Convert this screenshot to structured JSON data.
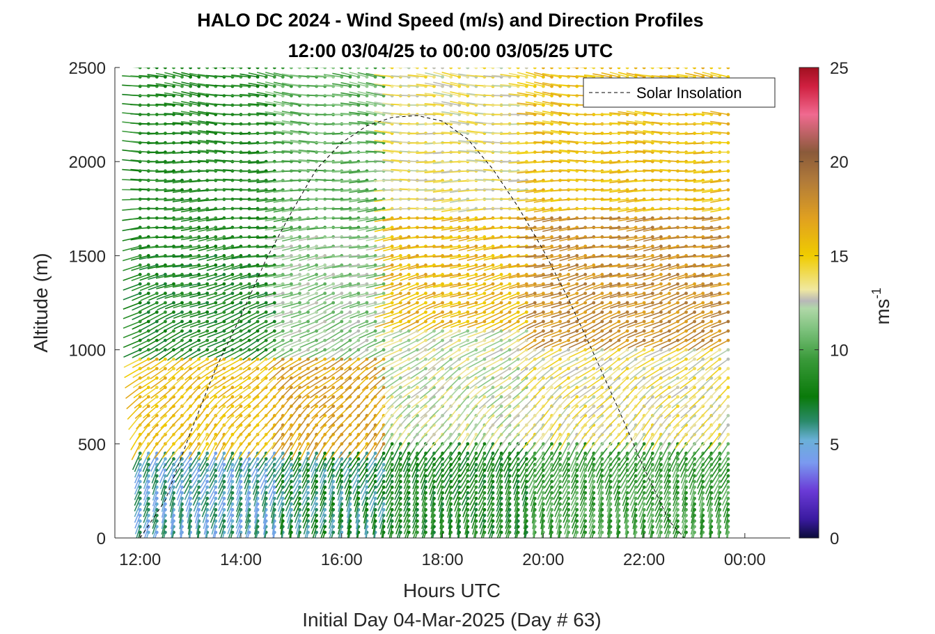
{
  "chart_data": {
    "type": "wind-barb-profile",
    "title": "HALO DC 2024 - Wind Speed (m/s) and Direction Profiles",
    "subtitle": "12:00 03/04/25 to 00:00 03/05/25  UTC",
    "xlabel": "Hours UTC",
    "xlabel2": "Initial Day 04-Mar-2025 (Day # 63)",
    "ylabel": "Altitude (m)",
    "xlim_hours": [
      11.5,
      24.9
    ],
    "ylim": [
      0,
      2500
    ],
    "x_ticks": [
      {
        "value": 12,
        "label": "12:00"
      },
      {
        "value": 14,
        "label": "14:00"
      },
      {
        "value": 16,
        "label": "16:00"
      },
      {
        "value": 18,
        "label": "18:00"
      },
      {
        "value": 20,
        "label": "20:00"
      },
      {
        "value": 22,
        "label": "22:00"
      },
      {
        "value": 24,
        "label": "00:00"
      }
    ],
    "y_ticks": [
      {
        "value": 0,
        "label": "0"
      },
      {
        "value": 500,
        "label": "500"
      },
      {
        "value": 1000,
        "label": "1000"
      },
      {
        "value": 1500,
        "label": "1500"
      },
      {
        "value": 2000,
        "label": "2000"
      },
      {
        "value": 2500,
        "label": "2500"
      }
    ],
    "colorbar": {
      "label": "ms",
      "label_sup": "-1",
      "range": [
        0,
        25
      ],
      "ticks": [
        {
          "value": 0,
          "label": "0"
        },
        {
          "value": 5,
          "label": "5"
        },
        {
          "value": 10,
          "label": "10"
        },
        {
          "value": 15,
          "label": "15"
        },
        {
          "value": 20,
          "label": "20"
        },
        {
          "value": 25,
          "label": "25"
        }
      ],
      "stops": [
        {
          "v": 0,
          "color": "#0b0c3a"
        },
        {
          "v": 1,
          "color": "#3a1aa0"
        },
        {
          "v": 2.5,
          "color": "#6a3ad6"
        },
        {
          "v": 4,
          "color": "#7a9af0"
        },
        {
          "v": 5.2,
          "color": "#6ab0d8"
        },
        {
          "v": 6.2,
          "color": "#2a8a6a"
        },
        {
          "v": 7.5,
          "color": "#0a7a0a"
        },
        {
          "v": 9.5,
          "color": "#3a9a3a"
        },
        {
          "v": 11,
          "color": "#7ac07a"
        },
        {
          "v": 12.2,
          "color": "#b0d8a8"
        },
        {
          "v": 12.6,
          "color": "#b8b8b8"
        },
        {
          "v": 13.2,
          "color": "#f0e8a0"
        },
        {
          "v": 15,
          "color": "#f0cc00"
        },
        {
          "v": 17,
          "color": "#e0a020"
        },
        {
          "v": 19,
          "color": "#b07a3a"
        },
        {
          "v": 20.5,
          "color": "#8a5a3a"
        },
        {
          "v": 22.5,
          "color": "#f06a90"
        },
        {
          "v": 24,
          "color": "#d02040"
        },
        {
          "v": 25,
          "color": "#a01020"
        }
      ]
    },
    "legend": {
      "entries": [
        "Solar Insolation"
      ],
      "placement": "top-right"
    },
    "barb_columns": {
      "start_hour": 12.0,
      "end_hour": 23.8,
      "step_hour": 0.1667,
      "levels_low": {
        "start": 30,
        "end": 450,
        "step": 30
      },
      "levels_high": {
        "start": 450,
        "end": 2500,
        "step": 50
      }
    },
    "speed_regimes": [
      {
        "from_hour": 12.0,
        "to_hour": 14.7,
        "layers": [
          {
            "z0": 0,
            "z1": 450,
            "speed": 5.5
          },
          {
            "z0": 450,
            "z1": 950,
            "speed": 15.5
          },
          {
            "z0": 950,
            "z1": 1500,
            "speed": 8.0
          },
          {
            "z0": 1500,
            "z1": 2500,
            "speed": 8.5
          }
        ]
      },
      {
        "from_hour": 14.7,
        "to_hour": 17.0,
        "layers": [
          {
            "z0": 0,
            "z1": 450,
            "speed": 6.5
          },
          {
            "z0": 450,
            "z1": 950,
            "speed": 17.0
          },
          {
            "z0": 950,
            "z1": 1600,
            "speed": 11.5
          },
          {
            "z0": 1600,
            "z1": 2500,
            "speed": 10.5
          }
        ]
      },
      {
        "from_hour": 17.0,
        "to_hour": 19.8,
        "layers": [
          {
            "z0": 0,
            "z1": 500,
            "speed": 8.0
          },
          {
            "z0": 500,
            "z1": 1100,
            "speed": 12.5
          },
          {
            "z0": 1100,
            "z1": 1700,
            "speed": 16.0
          },
          {
            "z0": 1700,
            "z1": 2500,
            "speed": 13.5
          }
        ]
      },
      {
        "from_hour": 19.8,
        "to_hour": 23.8,
        "layers": [
          {
            "z0": 0,
            "z1": 500,
            "speed": 9.5
          },
          {
            "z0": 500,
            "z1": 1000,
            "speed": 13.5
          },
          {
            "z0": 1000,
            "z1": 1700,
            "speed": 18.0
          },
          {
            "z0": 1700,
            "z1": 2500,
            "speed": 15.5
          }
        ]
      }
    ],
    "direction_profile": [
      {
        "z": 0,
        "from_deg": 190
      },
      {
        "z": 450,
        "from_deg": 210
      },
      {
        "z": 1000,
        "from_deg": 240
      },
      {
        "z": 1500,
        "from_deg": 260
      },
      {
        "z": 2500,
        "from_deg": 280
      }
    ],
    "solar_insolation": [
      {
        "hour": 11.5,
        "alt": 0
      },
      {
        "hour": 12.0,
        "alt": 0
      },
      {
        "hour": 12.5,
        "alt": 200
      },
      {
        "hour": 13.0,
        "alt": 560
      },
      {
        "hour": 13.5,
        "alt": 900
      },
      {
        "hour": 14.0,
        "alt": 1180
      },
      {
        "hour": 14.5,
        "alt": 1480
      },
      {
        "hour": 15.0,
        "alt": 1730
      },
      {
        "hour": 15.5,
        "alt": 1960
      },
      {
        "hour": 16.0,
        "alt": 2100
      },
      {
        "hour": 16.5,
        "alt": 2190
      },
      {
        "hour": 17.0,
        "alt": 2235
      },
      {
        "hour": 17.5,
        "alt": 2245
      },
      {
        "hour": 18.0,
        "alt": 2215
      },
      {
        "hour": 18.5,
        "alt": 2120
      },
      {
        "hour": 19.0,
        "alt": 1960
      },
      {
        "hour": 19.5,
        "alt": 1760
      },
      {
        "hour": 20.0,
        "alt": 1530
      },
      {
        "hour": 20.5,
        "alt": 1270
      },
      {
        "hour": 21.0,
        "alt": 980
      },
      {
        "hour": 21.5,
        "alt": 680
      },
      {
        "hour": 22.0,
        "alt": 370
      },
      {
        "hour": 22.5,
        "alt": 90
      },
      {
        "hour": 22.8,
        "alt": 0
      },
      {
        "hour": 24.9,
        "alt": 0
      }
    ]
  }
}
